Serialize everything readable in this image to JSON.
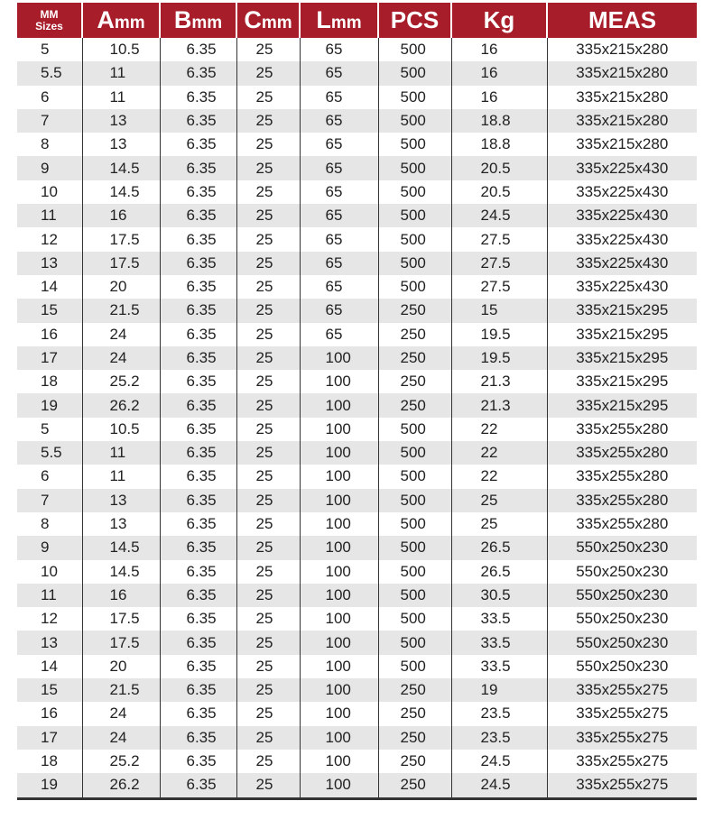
{
  "header": {
    "sizes": {
      "line1": "MM",
      "line2": "Sizes"
    },
    "a": {
      "letter": "A",
      "unit": "mm"
    },
    "b": {
      "letter": "B",
      "unit": "mm"
    },
    "c": {
      "letter": "C",
      "unit": "mm"
    },
    "l": {
      "letter": "L",
      "unit": "mm"
    },
    "pcs": "PCS",
    "kg": "Kg",
    "meas": "MEAS"
  },
  "colors": {
    "header_bg": "#a71d2a",
    "alt_row": "#e6e6e6"
  },
  "rows": [
    [
      "5",
      "10.5",
      "6.35",
      "25",
      "65",
      "500",
      "16",
      "335x215x280"
    ],
    [
      "5.5",
      "11",
      "6.35",
      "25",
      "65",
      "500",
      "16",
      "335x215x280"
    ],
    [
      "6",
      "11",
      "6.35",
      "25",
      "65",
      "500",
      "16",
      "335x215x280"
    ],
    [
      "7",
      "13",
      "6.35",
      "25",
      "65",
      "500",
      "18.8",
      "335x215x280"
    ],
    [
      "8",
      "13",
      "6.35",
      "25",
      "65",
      "500",
      "18.8",
      "335x215x280"
    ],
    [
      "9",
      "14.5",
      "6.35",
      "25",
      "65",
      "500",
      "20.5",
      "335x225x430"
    ],
    [
      "10",
      "14.5",
      "6.35",
      "25",
      "65",
      "500",
      "20.5",
      "335x225x430"
    ],
    [
      "11",
      "16",
      "6.35",
      "25",
      "65",
      "500",
      "24.5",
      "335x225x430"
    ],
    [
      "12",
      "17.5",
      "6.35",
      "25",
      "65",
      "500",
      "27.5",
      "335x225x430"
    ],
    [
      "13",
      "17.5",
      "6.35",
      "25",
      "65",
      "500",
      "27.5",
      "335x225x430"
    ],
    [
      "14",
      "20",
      "6.35",
      "25",
      "65",
      "500",
      "27.5",
      "335x225x430"
    ],
    [
      "15",
      "21.5",
      "6.35",
      "25",
      "65",
      "250",
      "15",
      "335x215x295"
    ],
    [
      "16",
      "24",
      "6.35",
      "25",
      "65",
      "250",
      "19.5",
      "335x215x295"
    ],
    [
      "17",
      "24",
      "6.35",
      "25",
      "100",
      "250",
      "19.5",
      "335x215x295"
    ],
    [
      "18",
      "25.2",
      "6.35",
      "25",
      "100",
      "250",
      "21.3",
      "335x215x295"
    ],
    [
      "19",
      "26.2",
      "6.35",
      "25",
      "100",
      "250",
      "21.3",
      "335x215x295"
    ],
    [
      "5",
      "10.5",
      "6.35",
      "25",
      "100",
      "500",
      "22",
      "335x255x280"
    ],
    [
      "5.5",
      "11",
      "6.35",
      "25",
      "100",
      "500",
      "22",
      "335x255x280"
    ],
    [
      "6",
      "11",
      "6.35",
      "25",
      "100",
      "500",
      "22",
      "335x255x280"
    ],
    [
      "7",
      "13",
      "6.35",
      "25",
      "100",
      "500",
      "25",
      "335x255x280"
    ],
    [
      "8",
      "13",
      "6.35",
      "25",
      "100",
      "500",
      "25",
      "335x255x280"
    ],
    [
      "9",
      "14.5",
      "6.35",
      "25",
      "100",
      "500",
      "26.5",
      "550x250x230"
    ],
    [
      "10",
      "14.5",
      "6.35",
      "25",
      "100",
      "500",
      "26.5",
      "550x250x230"
    ],
    [
      "11",
      "16",
      "6.35",
      "25",
      "100",
      "500",
      "30.5",
      "550x250x230"
    ],
    [
      "12",
      "17.5",
      "6.35",
      "25",
      "100",
      "500",
      "33.5",
      "550x250x230"
    ],
    [
      "13",
      "17.5",
      "6.35",
      "25",
      "100",
      "500",
      "33.5",
      "550x250x230"
    ],
    [
      "14",
      "20",
      "6.35",
      "25",
      "100",
      "500",
      "33.5",
      "550x250x230"
    ],
    [
      "15",
      "21.5",
      "6.35",
      "25",
      "100",
      "250",
      "19",
      "335x255x275"
    ],
    [
      "16",
      "24",
      "6.35",
      "25",
      "100",
      "250",
      "23.5",
      "335x255x275"
    ],
    [
      "17",
      "24",
      "6.35",
      "25",
      "100",
      "250",
      "23.5",
      "335x255x275"
    ],
    [
      "18",
      "25.2",
      "6.35",
      "25",
      "100",
      "250",
      "24.5",
      "335x255x275"
    ],
    [
      "19",
      "26.2",
      "6.35",
      "25",
      "100",
      "250",
      "24.5",
      "335x255x275"
    ]
  ]
}
